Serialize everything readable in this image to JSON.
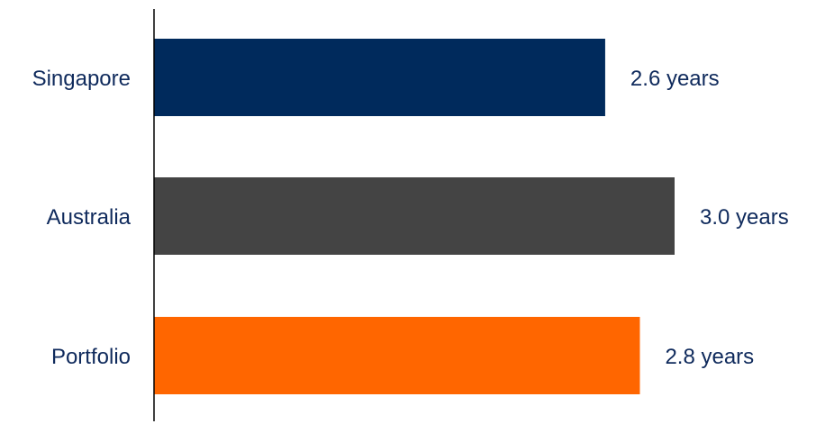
{
  "chart_data": {
    "type": "bar",
    "orientation": "horizontal",
    "categories": [
      "Singapore",
      "Australia",
      "Portfolio"
    ],
    "values": [
      2.6,
      3.0,
      2.8
    ],
    "value_labels": [
      "2.6 years",
      "3.0 years",
      "2.8 years"
    ],
    "colors": [
      "#002a5c",
      "#444444",
      "#ff6600"
    ],
    "title": "",
    "xlabel": "",
    "ylabel": "",
    "xlim": [
      0,
      3.0
    ],
    "grid": false,
    "legend": "none"
  }
}
